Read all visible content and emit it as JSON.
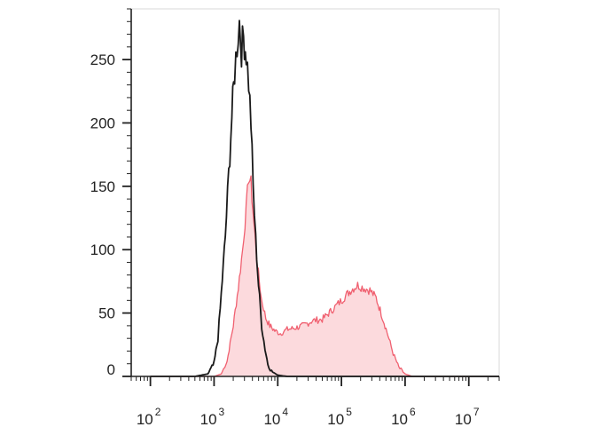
{
  "chart_data": {
    "type": "area",
    "title": "",
    "xlabel": "",
    "ylabel": "",
    "x_scale": "log",
    "xlim": [
      50,
      30000000
    ],
    "ylim": [
      0,
      290
    ],
    "x_tick_labels": [
      {
        "base": "10",
        "exp": "2",
        "value": 100
      },
      {
        "base": "10",
        "exp": "3",
        "value": 1000
      },
      {
        "base": "10",
        "exp": "4",
        "value": 10000
      },
      {
        "base": "10",
        "exp": "5",
        "value": 100000
      },
      {
        "base": "10",
        "exp": "6",
        "value": 1000000
      },
      {
        "base": "10",
        "exp": "7",
        "value": 10000000
      }
    ],
    "y_ticks": [
      0,
      50,
      100,
      150,
      200,
      250
    ],
    "y_tick_labels": [
      "0",
      "50",
      "100",
      "150",
      "200",
      "250"
    ],
    "grid": false,
    "legend": "none",
    "series": [
      {
        "style": "line",
        "color": "#1a1a1a",
        "points": [
          [
            100,
            0
          ],
          [
            500,
            0
          ],
          [
            800,
            2
          ],
          [
            1000,
            10
          ],
          [
            1150,
            30
          ],
          [
            1300,
            65
          ],
          [
            1500,
            110
          ],
          [
            1700,
            160
          ],
          [
            1900,
            205
          ],
          [
            2100,
            240
          ],
          [
            2300,
            262
          ],
          [
            2500,
            280
          ],
          [
            2700,
            258
          ],
          [
            2900,
            268
          ],
          [
            3200,
            255
          ],
          [
            3500,
            232
          ],
          [
            3800,
            200
          ],
          [
            4100,
            150
          ],
          [
            4500,
            108
          ],
          [
            5000,
            72
          ],
          [
            5600,
            40
          ],
          [
            6300,
            22
          ],
          [
            7000,
            10
          ],
          [
            8000,
            4
          ],
          [
            10000,
            1
          ],
          [
            14000,
            0
          ],
          [
            30000000,
            0
          ]
        ]
      },
      {
        "style": "filled",
        "color": "#f06070",
        "fill": "#fcdadd",
        "points": [
          [
            100,
            0
          ],
          [
            1000,
            0
          ],
          [
            1300,
            2
          ],
          [
            1600,
            12
          ],
          [
            2000,
            40
          ],
          [
            2400,
            70
          ],
          [
            2800,
            100
          ],
          [
            3200,
            132
          ],
          [
            3500,
            158
          ],
          [
            3800,
            152
          ],
          [
            4200,
            122
          ],
          [
            4800,
            88
          ],
          [
            5500,
            62
          ],
          [
            6500,
            46
          ],
          [
            7500,
            40
          ],
          [
            9000,
            36
          ],
          [
            11000,
            34
          ],
          [
            14000,
            37
          ],
          [
            18000,
            38
          ],
          [
            25000,
            40
          ],
          [
            35000,
            44
          ],
          [
            50000,
            45
          ],
          [
            70000,
            52
          ],
          [
            100000,
            60
          ],
          [
            140000,
            68
          ],
          [
            180000,
            72
          ],
          [
            220000,
            70
          ],
          [
            280000,
            68
          ],
          [
            350000,
            62
          ],
          [
            420000,
            50
          ],
          [
            520000,
            35
          ],
          [
            650000,
            18
          ],
          [
            800000,
            7
          ],
          [
            1000000,
            2
          ],
          [
            1300000,
            0
          ],
          [
            30000000,
            0
          ]
        ]
      }
    ]
  }
}
